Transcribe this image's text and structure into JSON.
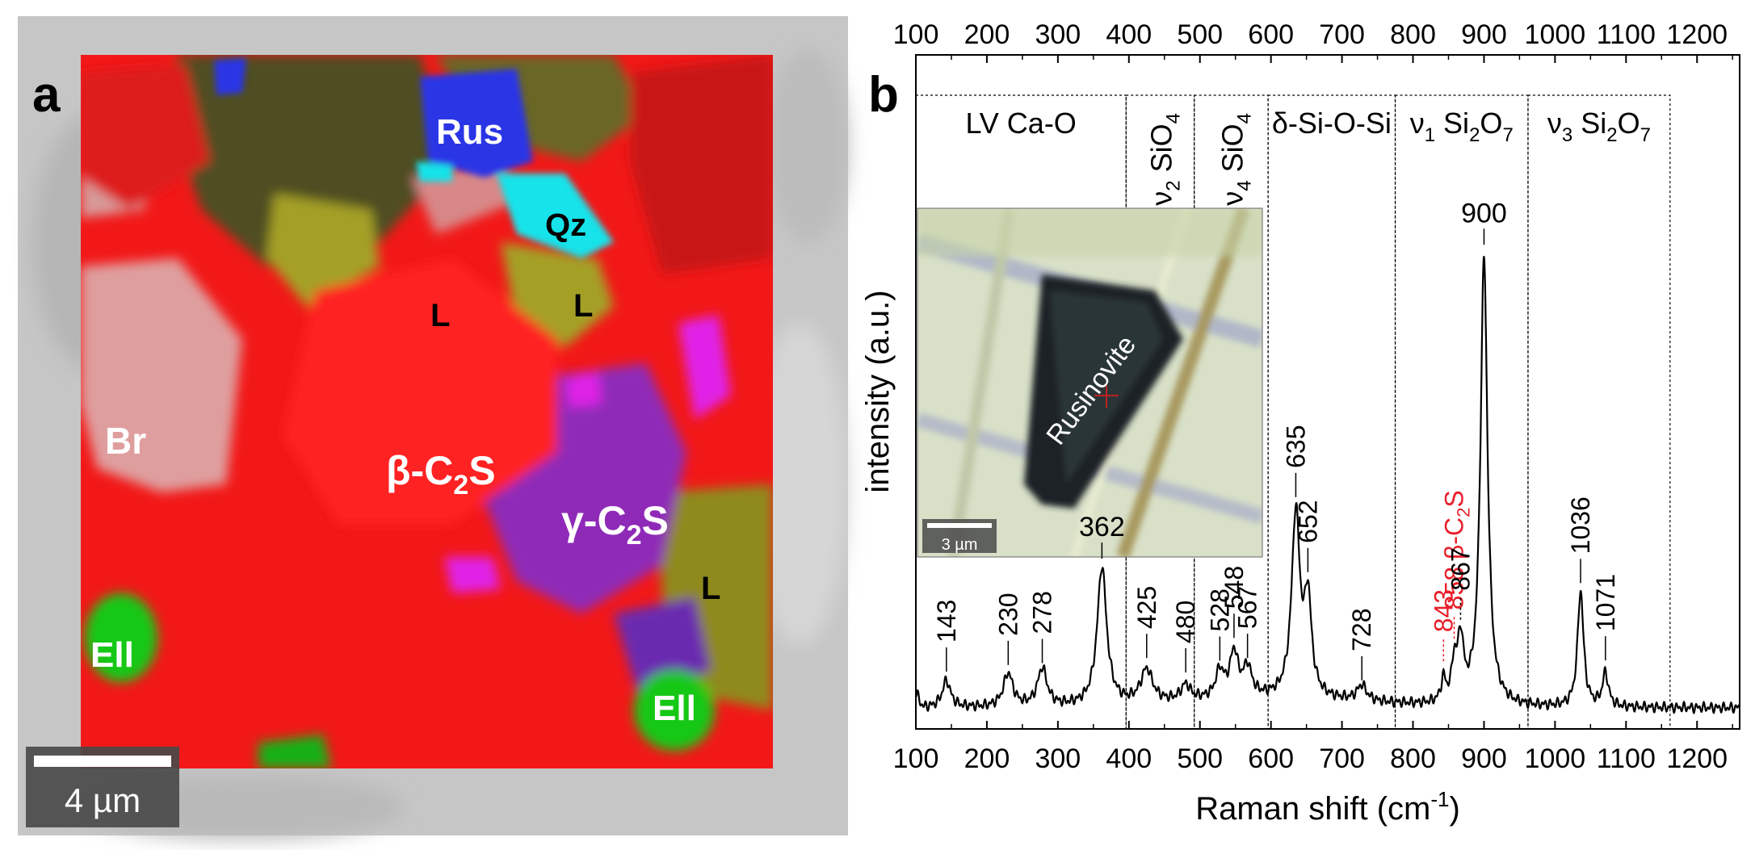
{
  "panel_a": {
    "panel_letter": "a",
    "scale_bar_label": "4 µm",
    "phase_labels": [
      {
        "key": "rus",
        "text": "Rus",
        "color": "#2a34e6"
      },
      {
        "key": "qz",
        "text": "Qz",
        "color": "#18e3ea"
      },
      {
        "key": "l1",
        "text": "L",
        "color": "#8f8a1c"
      },
      {
        "key": "l2",
        "text": "L",
        "color": "#8f8a1c"
      },
      {
        "key": "l3",
        "text": "L",
        "color": "#8f8a1c"
      },
      {
        "key": "br",
        "text": "Br",
        "color": "#e2a0a0"
      },
      {
        "key": "bc2s",
        "text": "β-C",
        "sub": "2",
        "tail": "S",
        "color": "#ff1a1a"
      },
      {
        "key": "gc2s",
        "text": "γ-C",
        "sub": "2",
        "tail": "S",
        "color": "#a020c8"
      },
      {
        "key": "ell1",
        "text": "Ell",
        "color": "#18c818"
      },
      {
        "key": "ell2",
        "text": "Ell",
        "color": "#18c818"
      }
    ]
  },
  "panel_b": {
    "panel_letter": "b",
    "inset_label": "Rusinovite",
    "inset_scale_label": "3 µm"
  },
  "chart_data": {
    "type": "line",
    "xlabel": "Raman shift (cm",
    "xlabel_sup": "-1",
    "xlabel_tail": ")",
    "ylabel": "intensity (a.u.)",
    "xlim": [
      100,
      1260
    ],
    "ylim": [
      0,
      1
    ],
    "x_ticks": [
      100,
      200,
      300,
      400,
      500,
      600,
      700,
      800,
      900,
      1000,
      1100,
      1200
    ],
    "top_axis_ticks": [
      100,
      200,
      300,
      400,
      500,
      600,
      700,
      800,
      900,
      1000,
      1100,
      1200
    ],
    "series": [
      {
        "name": "Rusinovite spectrum",
        "color": "#000000"
      }
    ],
    "peaks": [
      {
        "x": 143,
        "h": 0.06,
        "w": 7,
        "label": "143"
      },
      {
        "x": 230,
        "h": 0.075,
        "w": 8,
        "label": "230"
      },
      {
        "x": 278,
        "h": 0.085,
        "w": 8,
        "label": "278"
      },
      {
        "x": 362,
        "h": 0.31,
        "w": 8,
        "label": "362"
      },
      {
        "x": 425,
        "h": 0.075,
        "w": 10,
        "label": "425"
      },
      {
        "x": 480,
        "h": 0.035,
        "w": 8,
        "label": "480"
      },
      {
        "x": 528,
        "h": 0.06,
        "w": 7,
        "label": "528"
      },
      {
        "x": 548,
        "h": 0.1,
        "w": 7,
        "label": "548"
      },
      {
        "x": 567,
        "h": 0.065,
        "w": 7,
        "label": "567"
      },
      {
        "x": 635,
        "h": 0.41,
        "w": 7,
        "label": "635"
      },
      {
        "x": 652,
        "h": 0.21,
        "w": 6,
        "label": "652"
      },
      {
        "x": 728,
        "h": 0.035,
        "w": 8,
        "label": "728"
      },
      {
        "x": 843,
        "h": 0.05,
        "w": 4,
        "label": "843",
        "color": "#e8202a"
      },
      {
        "x": 858,
        "h": 0.08,
        "w": 4,
        "label": "858",
        "color": "#e8202a",
        "extra": "β-C",
        "extra_sub": "2",
        "extra_tail": "S"
      },
      {
        "x": 867,
        "h": 0.14,
        "w": 5,
        "label": "867"
      },
      {
        "x": 900,
        "h": 1.0,
        "w": 6,
        "label": "900"
      },
      {
        "x": 1036,
        "h": 0.26,
        "w": 5,
        "label": "1036"
      },
      {
        "x": 1071,
        "h": 0.075,
        "w": 5,
        "label": "1071"
      }
    ],
    "regions": [
      {
        "x0": 100,
        "x1": 396,
        "label": "LV Ca-O"
      },
      {
        "x0": 396,
        "x1": 492,
        "label": "ν",
        "sub": "2",
        "tail": " SiO",
        "sub2": "4",
        "vertical": true
      },
      {
        "x0": 492,
        "x1": 596,
        "label": "ν",
        "sub": "4",
        "tail": " SiO",
        "sub2": "4",
        "vertical": true
      },
      {
        "x0": 596,
        "x1": 775,
        "label": "δ-Si-O-Si"
      },
      {
        "x0": 775,
        "x1": 962,
        "label": "ν",
        "sub": "1",
        "tail": " Si",
        "sub2": "2",
        "tail2": "O",
        "sub3": "7"
      },
      {
        "x0": 962,
        "x1": 1162,
        "label": "ν",
        "sub": "3",
        "tail": " Si",
        "sub2": "2",
        "tail2": "O",
        "sub3": "7"
      }
    ]
  }
}
